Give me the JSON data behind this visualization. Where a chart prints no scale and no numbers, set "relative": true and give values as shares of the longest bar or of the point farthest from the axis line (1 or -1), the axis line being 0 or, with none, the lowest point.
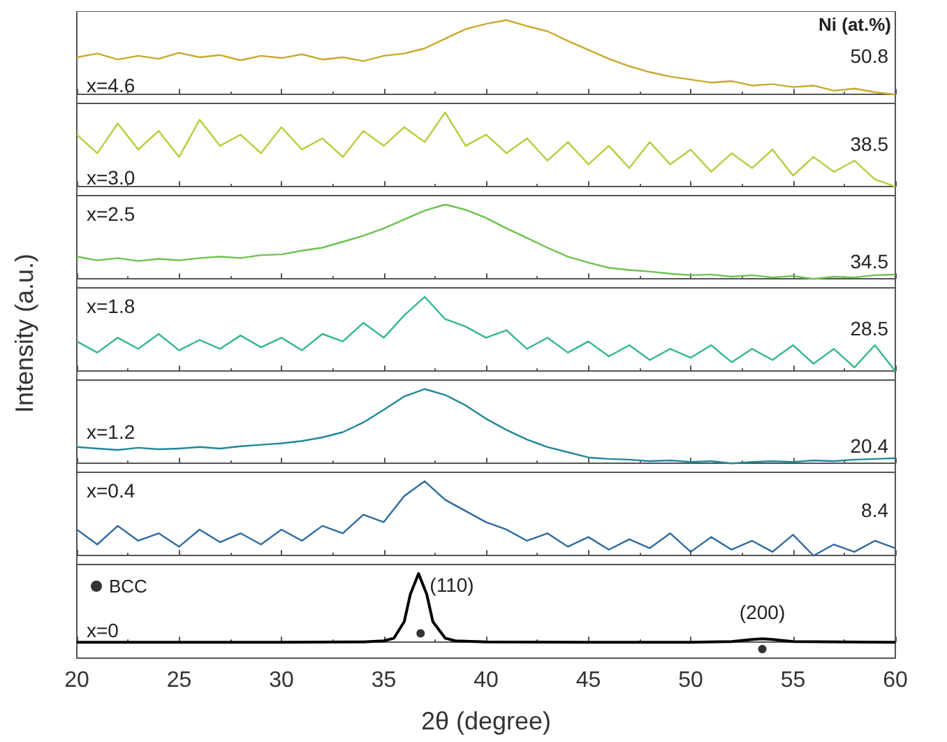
{
  "chart_data": [
    {
      "type": "line",
      "relative": true,
      "xlim": [
        20,
        60
      ],
      "xticks": [
        20,
        25,
        30,
        35,
        40,
        45,
        50,
        55,
        60
      ],
      "tick_labels": false,
      "annotations": [
        "x=4.6",
        "50.8",
        "Ni (at.%)"
      ],
      "series": [
        {
          "color": "#c9a92c",
          "x": [
            20,
            21,
            22,
            23,
            24,
            25,
            26,
            27,
            28,
            29,
            30,
            31,
            32,
            33,
            34,
            35,
            36,
            37,
            38,
            39,
            40,
            41,
            42,
            43,
            44,
            45,
            46,
            47,
            48,
            49,
            50,
            51,
            52,
            53,
            54,
            55,
            56,
            57,
            58,
            59,
            60
          ],
          "values": [
            0.5,
            0.55,
            0.47,
            0.52,
            0.48,
            0.56,
            0.5,
            0.53,
            0.46,
            0.52,
            0.49,
            0.54,
            0.47,
            0.5,
            0.45,
            0.52,
            0.55,
            0.62,
            0.75,
            0.88,
            0.95,
            1.0,
            0.92,
            0.85,
            0.72,
            0.6,
            0.48,
            0.38,
            0.3,
            0.24,
            0.2,
            0.16,
            0.18,
            0.12,
            0.14,
            0.1,
            0.12,
            0.05,
            0.08,
            0.03,
            0.0
          ]
        }
      ]
    },
    {
      "type": "line",
      "relative": true,
      "xlim": [
        20,
        60
      ],
      "xticks": [
        20,
        25,
        30,
        35,
        40,
        45,
        50,
        55,
        60
      ],
      "tick_labels": false,
      "annotations": [
        "x=3.0",
        "38.5"
      ],
      "series": [
        {
          "color": "#b4cf3c",
          "x": [
            20,
            21,
            22,
            23,
            24,
            25,
            26,
            27,
            28,
            29,
            30,
            31,
            32,
            33,
            34,
            35,
            36,
            37,
            38,
            39,
            40,
            41,
            42,
            43,
            44,
            45,
            46,
            47,
            48,
            49,
            50,
            51,
            52,
            53,
            54,
            55,
            56,
            57,
            58,
            59,
            60
          ],
          "values": [
            0.7,
            0.45,
            0.85,
            0.5,
            0.75,
            0.4,
            0.9,
            0.55,
            0.7,
            0.45,
            0.8,
            0.5,
            0.65,
            0.4,
            0.75,
            0.55,
            0.8,
            0.6,
            1.0,
            0.55,
            0.7,
            0.45,
            0.65,
            0.35,
            0.6,
            0.3,
            0.55,
            0.25,
            0.6,
            0.3,
            0.5,
            0.2,
            0.45,
            0.25,
            0.5,
            0.15,
            0.4,
            0.2,
            0.35,
            0.1,
            0.0
          ]
        }
      ]
    },
    {
      "type": "line",
      "relative": true,
      "xlim": [
        20,
        60
      ],
      "xticks": [
        20,
        25,
        30,
        35,
        40,
        45,
        50,
        55,
        60
      ],
      "tick_labels": false,
      "annotations": [
        "x=2.5",
        "34.5"
      ],
      "series": [
        {
          "color": "#6dc24f",
          "x": [
            20,
            21,
            22,
            23,
            24,
            25,
            26,
            27,
            28,
            29,
            30,
            31,
            32,
            33,
            34,
            35,
            36,
            37,
            38,
            39,
            40,
            41,
            42,
            43,
            44,
            45,
            46,
            47,
            48,
            49,
            50,
            51,
            52,
            53,
            54,
            55,
            56,
            57,
            58,
            59,
            60
          ],
          "values": [
            0.3,
            0.25,
            0.28,
            0.24,
            0.27,
            0.25,
            0.28,
            0.3,
            0.28,
            0.32,
            0.33,
            0.38,
            0.42,
            0.5,
            0.58,
            0.68,
            0.8,
            0.92,
            1.0,
            0.93,
            0.82,
            0.68,
            0.55,
            0.42,
            0.3,
            0.22,
            0.15,
            0.12,
            0.1,
            0.07,
            0.05,
            0.06,
            0.03,
            0.05,
            0.02,
            0.04,
            0.0,
            0.03,
            0.02,
            0.05,
            0.06
          ]
        }
      ]
    },
    {
      "type": "line",
      "relative": true,
      "xlim": [
        20,
        60
      ],
      "xticks": [
        20,
        25,
        30,
        35,
        40,
        45,
        50,
        55,
        60
      ],
      "tick_labels": false,
      "ylabel": "Intensity (a.u.)",
      "annotations": [
        "x=1.8",
        "28.5"
      ],
      "series": [
        {
          "color": "#34b88c",
          "x": [
            20,
            21,
            22,
            23,
            24,
            25,
            26,
            27,
            28,
            29,
            30,
            31,
            32,
            33,
            34,
            35,
            36,
            37,
            38,
            39,
            40,
            41,
            42,
            43,
            44,
            45,
            46,
            47,
            48,
            49,
            50,
            51,
            52,
            53,
            54,
            55,
            56,
            57,
            58,
            59,
            60
          ],
          "values": [
            0.4,
            0.25,
            0.45,
            0.3,
            0.5,
            0.28,
            0.42,
            0.3,
            0.48,
            0.32,
            0.45,
            0.28,
            0.5,
            0.4,
            0.65,
            0.45,
            0.75,
            1.0,
            0.7,
            0.6,
            0.45,
            0.55,
            0.3,
            0.45,
            0.25,
            0.4,
            0.2,
            0.35,
            0.15,
            0.3,
            0.18,
            0.35,
            0.12,
            0.3,
            0.15,
            0.35,
            0.1,
            0.3,
            0.05,
            0.35,
            0.0
          ]
        }
      ]
    },
    {
      "type": "line",
      "relative": true,
      "xlim": [
        20,
        60
      ],
      "xticks": [
        20,
        25,
        30,
        35,
        40,
        45,
        50,
        55,
        60
      ],
      "tick_labels": false,
      "annotations": [
        "x=1.2",
        "20.4"
      ],
      "series": [
        {
          "color": "#22879a",
          "x": [
            20,
            21,
            22,
            23,
            24,
            25,
            26,
            27,
            28,
            29,
            30,
            31,
            32,
            33,
            34,
            35,
            36,
            37,
            38,
            39,
            40,
            41,
            42,
            43,
            44,
            45,
            46,
            47,
            48,
            49,
            50,
            51,
            52,
            53,
            54,
            55,
            56,
            57,
            58,
            59,
            60
          ],
          "values": [
            0.22,
            0.2,
            0.18,
            0.21,
            0.19,
            0.2,
            0.22,
            0.2,
            0.23,
            0.25,
            0.27,
            0.3,
            0.35,
            0.42,
            0.55,
            0.72,
            0.9,
            1.0,
            0.92,
            0.78,
            0.6,
            0.45,
            0.32,
            0.22,
            0.15,
            0.08,
            0.06,
            0.05,
            0.03,
            0.04,
            0.02,
            0.03,
            0.0,
            0.02,
            0.03,
            0.02,
            0.04,
            0.03,
            0.05,
            0.06,
            0.07
          ]
        }
      ]
    },
    {
      "type": "line",
      "relative": true,
      "xlim": [
        20,
        60
      ],
      "xticks": [
        20,
        25,
        30,
        35,
        40,
        45,
        50,
        55,
        60
      ],
      "tick_labels": false,
      "annotations": [
        "x=0.4",
        "8.4"
      ],
      "series": [
        {
          "color": "#2f6b9e",
          "x": [
            20,
            21,
            22,
            23,
            24,
            25,
            26,
            27,
            28,
            29,
            30,
            31,
            32,
            33,
            34,
            35,
            36,
            37,
            38,
            39,
            40,
            41,
            42,
            43,
            44,
            45,
            46,
            47,
            48,
            49,
            50,
            51,
            52,
            53,
            54,
            55,
            56,
            57,
            58,
            59,
            60
          ],
          "values": [
            0.35,
            0.15,
            0.4,
            0.2,
            0.3,
            0.12,
            0.35,
            0.18,
            0.3,
            0.15,
            0.35,
            0.2,
            0.4,
            0.3,
            0.55,
            0.45,
            0.8,
            1.0,
            0.75,
            0.6,
            0.45,
            0.35,
            0.2,
            0.3,
            0.12,
            0.25,
            0.08,
            0.22,
            0.1,
            0.3,
            0.05,
            0.25,
            0.08,
            0.2,
            0.05,
            0.28,
            0.0,
            0.15,
            0.05,
            0.2,
            0.1
          ]
        }
      ]
    },
    {
      "type": "line",
      "relative": true,
      "xlim": [
        20,
        60
      ],
      "xticks": [
        20,
        25,
        30,
        35,
        40,
        45,
        50,
        55,
        60
      ],
      "tick_labels": "x",
      "xlabel": "2θ (degree)",
      "legend": "top left",
      "annotations": [
        "x=0",
        {
          "text": "(110)",
          "x": 36.7,
          "y": 1.0
        },
        {
          "text": "(200)",
          "x": 53.5,
          "y": 0.05
        }
      ],
      "series": [
        {
          "color": "#000000",
          "x": [
            20,
            25,
            30,
            34,
            35,
            35.5,
            36,
            36.3,
            36.7,
            37.1,
            37.4,
            38,
            38.5,
            40,
            45,
            50,
            52,
            53,
            53.5,
            54,
            55,
            60
          ],
          "values": [
            0,
            0,
            0,
            0.005,
            0.02,
            0.06,
            0.3,
            0.7,
            1.0,
            0.7,
            0.3,
            0.06,
            0.02,
            0.005,
            0,
            0,
            0.01,
            0.04,
            0.05,
            0.04,
            0.01,
            0
          ]
        },
        {
          "type": "scatter",
          "name": "BCC",
          "marker": "circle",
          "color": "#000000",
          "x": [
            36.8,
            53.5
          ],
          "values": [
            0.13,
            -0.1
          ]
        }
      ]
    }
  ]
}
